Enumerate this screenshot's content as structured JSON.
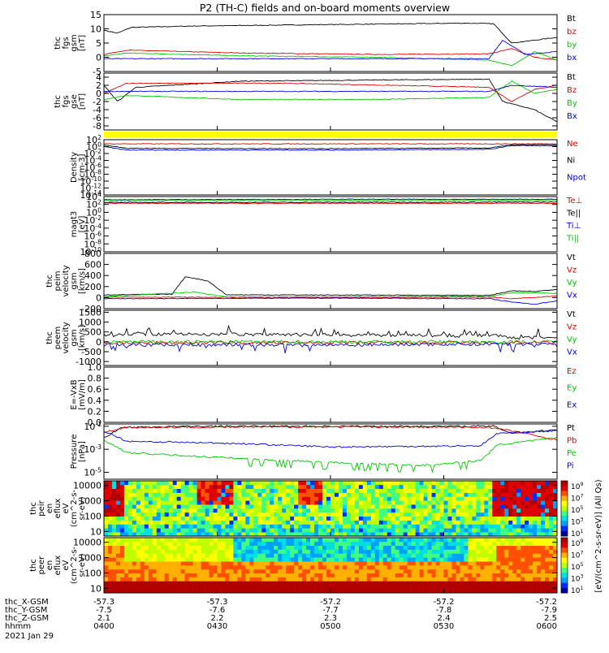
{
  "title": "P2 (TH-C) fields and on-board moments overview",
  "colors": {
    "black": "#000000",
    "red": "#e00000",
    "green": "#00c800",
    "blue": "#0000e0",
    "flag": "#ffff00"
  },
  "time_axis": {
    "start": "0400",
    "end": "0600",
    "tick_times": [
      "0400",
      "0430",
      "0500",
      "0530",
      "0600"
    ]
  },
  "ephemeris": {
    "rows": [
      {
        "label": "thc_X-GSM",
        "values": [
          "-57.3",
          "-57.3",
          "-57.2",
          "-57.2",
          "-57.2"
        ]
      },
      {
        "label": "thc_Y-GSM",
        "values": [
          "-7.5",
          "-7.6",
          "-7.7",
          "-7.8",
          "-7.9"
        ]
      },
      {
        "label": "thc_Z-GSM",
        "values": [
          "2.1",
          "2.2",
          "2.3",
          "2.4",
          "2.5"
        ]
      },
      {
        "label": "hhmm",
        "values": [
          "0400",
          "0430",
          "0500",
          "0530",
          "0600"
        ]
      }
    ],
    "date": "2021 Jan 29"
  },
  "colorbar_label": "[eV/(cm^2-s-sr-eV)] (All Qs)",
  "chart_data": [
    {
      "id": "fgs_gsm",
      "type": "line",
      "ylabel_lines": [
        "thc",
        "fgs",
        "gsm",
        "[nT]"
      ],
      "ylim": [
        -5,
        15
      ],
      "yticks": [
        "15",
        "10",
        "5",
        "0",
        "-5"
      ],
      "ytick_values": [
        15,
        10,
        5,
        0,
        -5
      ],
      "series": [
        {
          "name": "Bt",
          "color": "black",
          "shape": [
            [
              0,
              9.5
            ],
            [
              0.03,
              8.5
            ],
            [
              0.06,
              10.5
            ],
            [
              0.2,
              11
            ],
            [
              0.5,
              11.5
            ],
            [
              0.8,
              12
            ],
            [
              0.86,
              11.8
            ],
            [
              0.9,
              5
            ],
            [
              0.95,
              6
            ],
            [
              1,
              7
            ]
          ]
        },
        {
          "name": "bz",
          "color": "red",
          "shape": [
            [
              0,
              1
            ],
            [
              0.05,
              2.5
            ],
            [
              0.3,
              1.5
            ],
            [
              0.6,
              1
            ],
            [
              0.85,
              1.2
            ],
            [
              0.9,
              3
            ],
            [
              0.95,
              0
            ],
            [
              1,
              -1
            ]
          ]
        },
        {
          "name": "by",
          "color": "green",
          "shape": [
            [
              0,
              0.5
            ],
            [
              0.05,
              1.5
            ],
            [
              0.3,
              0.5
            ],
            [
              0.6,
              0
            ],
            [
              0.85,
              -1
            ],
            [
              0.9,
              -3
            ],
            [
              0.95,
              2
            ],
            [
              1,
              -1
            ]
          ]
        },
        {
          "name": "bx",
          "color": "blue",
          "shape": [
            [
              0,
              -0.5
            ],
            [
              0.5,
              -0.5
            ],
            [
              0.85,
              -0.5
            ],
            [
              0.88,
              6
            ],
            [
              0.93,
              1
            ],
            [
              1,
              2
            ]
          ]
        }
      ]
    },
    {
      "id": "fgs_gse",
      "type": "line",
      "ylabel_lines": [
        "thc",
        "fgs",
        "gse",
        "[nT]"
      ],
      "ylim": [
        -9,
        5
      ],
      "yticks": [
        "4",
        "2",
        "0",
        "-2",
        "-4",
        "-6",
        "-8"
      ],
      "ytick_values": [
        4,
        2,
        0,
        -2,
        -4,
        -6,
        -8
      ],
      "series": [
        {
          "name": "Bt",
          "color": "black",
          "shape": [
            [
              0,
              2
            ],
            [
              0.03,
              -2
            ],
            [
              0.07,
              1.5
            ],
            [
              0.3,
              3
            ],
            [
              0.6,
              3.3
            ],
            [
              0.85,
              3.5
            ],
            [
              0.88,
              -2
            ],
            [
              0.95,
              -4
            ],
            [
              1,
              -7
            ]
          ]
        },
        {
          "name": "Bz",
          "color": "red",
          "shape": [
            [
              0,
              0
            ],
            [
              0.05,
              2.5
            ],
            [
              0.4,
              2.5
            ],
            [
              0.85,
              1.5
            ],
            [
              0.9,
              -2
            ],
            [
              0.95,
              1
            ],
            [
              1,
              2
            ]
          ]
        },
        {
          "name": "By",
          "color": "green",
          "shape": [
            [
              0,
              -1.5
            ],
            [
              0.05,
              -0.5
            ],
            [
              0.3,
              -1.5
            ],
            [
              0.6,
              -1.5
            ],
            [
              0.85,
              -1
            ],
            [
              0.9,
              3
            ],
            [
              0.95,
              0
            ],
            [
              1,
              1
            ]
          ]
        },
        {
          "name": "Bx",
          "color": "blue",
          "shape": [
            [
              0,
              0.5
            ],
            [
              0.5,
              0.5
            ],
            [
              0.85,
              0.5
            ],
            [
              0.9,
              2
            ],
            [
              1,
              1.5
            ]
          ]
        }
      ]
    },
    {
      "id": "density",
      "type": "line",
      "log": true,
      "ylabel_lines": [
        "Density",
        "[cm-3]"
      ],
      "ylim": [
        -14,
        2
      ],
      "yticks": [
        "10^2",
        "10^0",
        "10^-2",
        "10^-4",
        "10^-6",
        "10^-8",
        "10^-10",
        "10^-12",
        "10^-14"
      ],
      "ytick_values": [
        2,
        0,
        -2,
        -4,
        -6,
        -8,
        -10,
        -12,
        -14
      ],
      "series": [
        {
          "name": "Ne",
          "color": "red",
          "shape": [
            [
              0,
              0.8
            ],
            [
              0.5,
              0.8
            ],
            [
              1,
              0.8
            ]
          ]
        },
        {
          "name": "Ni",
          "color": "black",
          "shape": [
            [
              0,
              0.5
            ],
            [
              0.05,
              -0.5
            ],
            [
              0.5,
              -0.6
            ],
            [
              0.85,
              -0.4
            ],
            [
              0.9,
              0.5
            ],
            [
              1,
              0.6
            ]
          ]
        },
        {
          "name": "Npot",
          "color": "blue",
          "shape": [
            [
              0,
              0
            ],
            [
              0.05,
              -1
            ],
            [
              0.5,
              -1
            ],
            [
              0.85,
              -0.8
            ],
            [
              0.9,
              0.3
            ],
            [
              1,
              0.2
            ]
          ]
        }
      ]
    },
    {
      "id": "temperature",
      "type": "line",
      "log": true,
      "ylabel_lines": [
        "magt3",
        "[eV]"
      ],
      "ylim": [
        -10,
        4
      ],
      "yticks": [
        "10^4",
        "10^2",
        "10^0",
        "10^-2",
        "10^-4",
        "10^-6",
        "10^-8",
        "10^-10"
      ],
      "ytick_values": [
        4,
        2,
        0,
        -2,
        -4,
        -6,
        -8,
        -10
      ],
      "series": [
        {
          "name": "Te⊥",
          "color": "red",
          "shape": [
            [
              0,
              2.3
            ],
            [
              1,
              2.3
            ]
          ]
        },
        {
          "name": "Te||",
          "color": "black",
          "shape": [
            [
              0,
              2.5
            ],
            [
              1,
              2.6
            ]
          ]
        },
        {
          "name": "Ti⊥",
          "color": "blue",
          "shape": [
            [
              0,
              3.2
            ],
            [
              0.5,
              3.3
            ],
            [
              1,
              3.3
            ]
          ]
        },
        {
          "name": "Ti||",
          "color": "green",
          "shape": [
            [
              0,
              3
            ],
            [
              1,
              3.1
            ]
          ]
        }
      ]
    },
    {
      "id": "peim_velocity",
      "type": "line",
      "ylabel_lines": [
        "thc",
        "peim",
        "velocity",
        "gsm",
        "[km/s]"
      ],
      "ylim": [
        -200,
        800
      ],
      "yticks": [
        "800",
        "600",
        "400",
        "200",
        "0",
        "-200"
      ],
      "ytick_values": [
        800,
        600,
        400,
        200,
        0,
        -200
      ],
      "series": [
        {
          "name": "Vt",
          "color": "black",
          "shape": [
            [
              0,
              50
            ],
            [
              0.15,
              60
            ],
            [
              0.18,
              380
            ],
            [
              0.23,
              300
            ],
            [
              0.27,
              50
            ],
            [
              0.85,
              40
            ],
            [
              0.9,
              120
            ],
            [
              0.95,
              110
            ],
            [
              1,
              150
            ]
          ]
        },
        {
          "name": "Vz",
          "color": "red",
          "shape": [
            [
              0,
              10
            ],
            [
              0.5,
              0
            ],
            [
              0.85,
              10
            ],
            [
              0.9,
              -20
            ],
            [
              1,
              30
            ]
          ]
        },
        {
          "name": "Vy",
          "color": "green",
          "shape": [
            [
              0,
              20
            ],
            [
              0.2,
              100
            ],
            [
              0.27,
              10
            ],
            [
              0.85,
              20
            ],
            [
              0.9,
              90
            ],
            [
              1,
              80
            ]
          ]
        },
        {
          "name": "Vx",
          "color": "blue",
          "shape": [
            [
              0,
              -20
            ],
            [
              0.5,
              -10
            ],
            [
              0.85,
              -20
            ],
            [
              0.9,
              -80
            ],
            [
              0.95,
              -120
            ],
            [
              1,
              -60
            ]
          ]
        }
      ]
    },
    {
      "id": "peem_velocity",
      "type": "line",
      "ylabel_lines": [
        "thc",
        "peem",
        "velocity",
        "gsm",
        "[km/s]"
      ],
      "ylim": [
        -1200,
        1600
      ],
      "yticks": [
        "1500",
        "1000",
        "500",
        "0",
        "-500",
        "-1000"
      ],
      "ytick_values": [
        1500,
        1000,
        500,
        0,
        -500,
        -1000
      ],
      "series": [
        {
          "name": "Vt",
          "color": "black",
          "shape": [
            [
              0,
              300
            ],
            [
              0.1,
              400
            ],
            [
              0.5,
              350
            ],
            [
              0.8,
              300
            ],
            [
              0.85,
              350
            ],
            [
              0.9,
              200
            ],
            [
              1,
              250
            ]
          ]
        },
        {
          "name": "Vz",
          "color": "red",
          "shape": [
            [
              0,
              -50
            ],
            [
              1,
              -50
            ]
          ]
        },
        {
          "name": "Vy",
          "color": "green",
          "shape": [
            [
              0,
              0
            ],
            [
              1,
              0
            ]
          ]
        },
        {
          "name": "Vx",
          "color": "blue",
          "shape": [
            [
              0,
              -150
            ],
            [
              0.5,
              -150
            ],
            [
              1,
              -100
            ]
          ]
        }
      ]
    },
    {
      "id": "efield",
      "type": "line",
      "ylabel_lines": [
        "E=-VxB",
        "[mV/m]"
      ],
      "ylim": [
        0,
        1
      ],
      "yticks": [
        "1.0",
        "0.8",
        "0.6",
        "0.4",
        "0.2",
        "0.0"
      ],
      "ytick_values": [
        1,
        0.8,
        0.6,
        0.4,
        0.2,
        0
      ],
      "series": [
        {
          "name": "Ez",
          "color": "red",
          "shape": []
        },
        {
          "name": "Ey",
          "color": "green",
          "shape": []
        },
        {
          "name": "Ex",
          "color": "blue",
          "shape": []
        }
      ]
    },
    {
      "id": "pressure",
      "type": "line",
      "log": true,
      "ylabel_lines": [
        "Pressure",
        "[nPa]"
      ],
      "ylim": [
        -5.6,
        -0.8
      ],
      "yticks": [
        "10^-1",
        "10^-3",
        "10^-5"
      ],
      "ytick_values": [
        -1,
        -3,
        -5
      ],
      "series": [
        {
          "name": "Pt",
          "color": "black",
          "shape": [
            [
              0,
              -2
            ],
            [
              0.04,
              -1.1
            ],
            [
              0.2,
              -1
            ],
            [
              0.86,
              -1
            ],
            [
              0.9,
              -1.6
            ],
            [
              1,
              -1.3
            ]
          ]
        },
        {
          "name": "Pb",
          "color": "red",
          "shape": [
            [
              0,
              -1.5
            ],
            [
              0.05,
              -1.1
            ],
            [
              0.5,
              -1.05
            ],
            [
              0.85,
              -1.1
            ],
            [
              0.9,
              -1.4
            ],
            [
              1,
              -2.2
            ]
          ]
        },
        {
          "name": "Pe",
          "color": "green",
          "shape": [
            [
              0,
              -2.2
            ],
            [
              0.05,
              -3.3
            ],
            [
              0.3,
              -3.8
            ],
            [
              0.55,
              -4.2
            ],
            [
              0.7,
              -4.4
            ],
            [
              0.83,
              -4
            ],
            [
              0.87,
              -2.6
            ],
            [
              1,
              -2
            ]
          ]
        },
        {
          "name": "Pi",
          "color": "blue",
          "shape": [
            [
              0,
              -1.4
            ],
            [
              0.05,
              -2.3
            ],
            [
              0.3,
              -2.5
            ],
            [
              0.5,
              -2.8
            ],
            [
              0.83,
              -2.7
            ],
            [
              0.87,
              -1.6
            ],
            [
              1,
              -1.4
            ]
          ]
        }
      ]
    },
    {
      "id": "peir_eflux",
      "type": "heatmap",
      "ylabel_lines": [
        "thc",
        "peir",
        "en",
        "eflux",
        "eV",
        "(cm^2-s-",
        "sr-eV)"
      ],
      "ylim": [
        5,
        20000
      ],
      "yticks": [
        "10000",
        "1000",
        "100",
        "10"
      ],
      "ytick_values": [
        10000,
        1000,
        100,
        10
      ]
    },
    {
      "id": "peer_eflux",
      "type": "heatmap",
      "ylabel_lines": [
        "thc",
        "peer",
        "en",
        "eflux",
        "eV",
        "(cm^2-s-",
        "sr-eV)"
      ],
      "ylim": [
        5,
        20000
      ],
      "yticks": [
        "10000",
        "1000",
        "100",
        "10"
      ],
      "ytick_values": [
        10000,
        1000,
        100,
        10
      ]
    }
  ]
}
